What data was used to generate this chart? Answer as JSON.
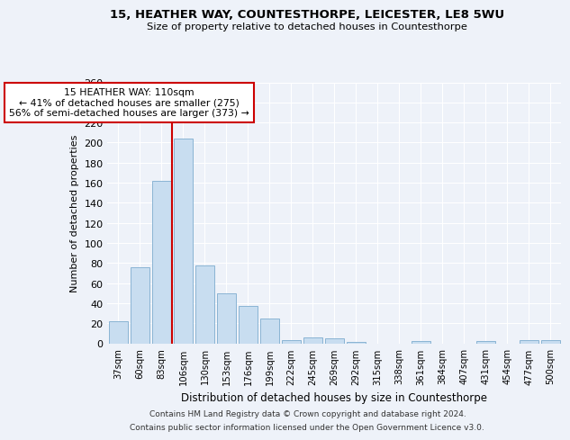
{
  "title": "15, HEATHER WAY, COUNTESTHORPE, LEICESTER, LE8 5WU",
  "subtitle": "Size of property relative to detached houses in Countesthorpe",
  "xlabel": "Distribution of detached houses by size in Countesthorpe",
  "ylabel": "Number of detached properties",
  "bar_color": "#c8ddf0",
  "bar_edge_color": "#8ab4d4",
  "categories": [
    "37sqm",
    "60sqm",
    "83sqm",
    "106sqm",
    "130sqm",
    "153sqm",
    "176sqm",
    "199sqm",
    "222sqm",
    "245sqm",
    "269sqm",
    "292sqm",
    "315sqm",
    "338sqm",
    "361sqm",
    "384sqm",
    "407sqm",
    "431sqm",
    "454sqm",
    "477sqm",
    "500sqm"
  ],
  "values": [
    22,
    76,
    162,
    204,
    78,
    50,
    37,
    25,
    3,
    6,
    5,
    1,
    0,
    0,
    2,
    0,
    0,
    2,
    0,
    3,
    3
  ],
  "ylim": [
    0,
    260
  ],
  "yticks": [
    0,
    20,
    40,
    60,
    80,
    100,
    120,
    140,
    160,
    180,
    200,
    220,
    240,
    260
  ],
  "vline_x": 3.5,
  "vline_color": "#cc0000",
  "annotation_line1": "15 HEATHER WAY: 110sqm",
  "annotation_line2": "← 41% of detached houses are smaller (275)",
  "annotation_line3": "56% of semi-detached houses are larger (373) →",
  "footer1": "Contains HM Land Registry data © Crown copyright and database right 2024.",
  "footer2": "Contains public sector information licensed under the Open Government Licence v3.0.",
  "background_color": "#eef2f9",
  "grid_color": "#ffffff"
}
